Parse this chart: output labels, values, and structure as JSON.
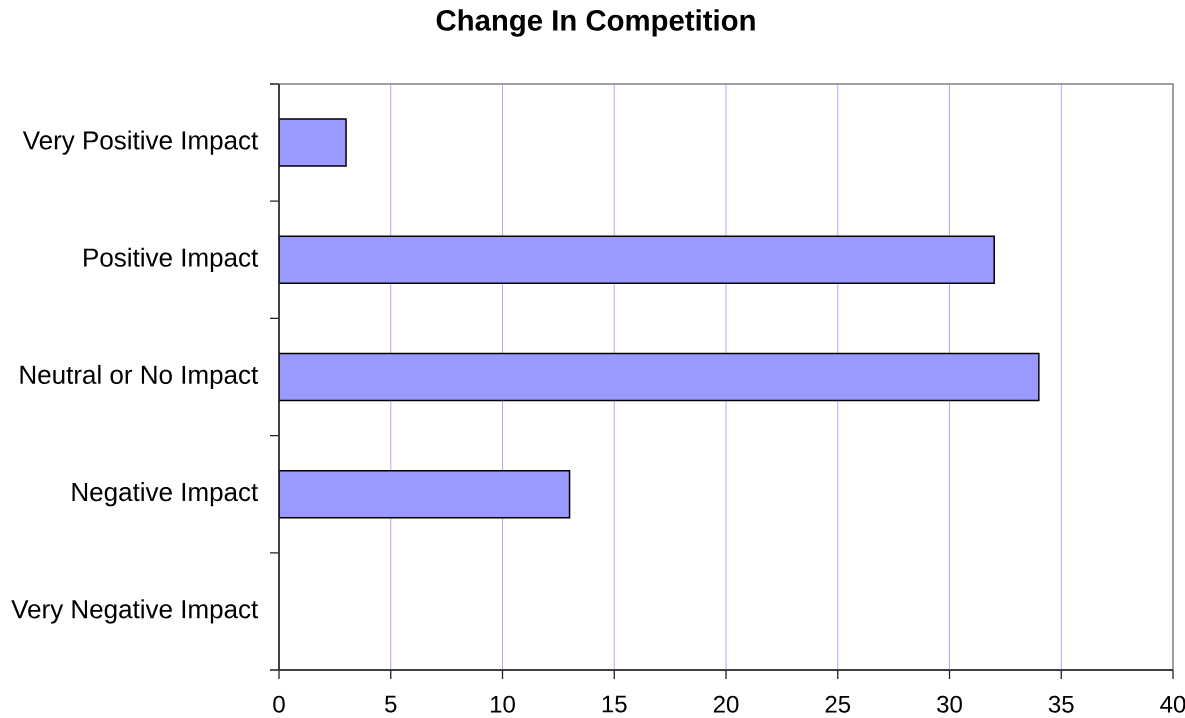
{
  "chart_data": {
    "type": "bar",
    "orientation": "horizontal",
    "title": "Change In Competition",
    "categories": [
      "Very Positive Impact",
      "Positive Impact",
      "Neutral or No Impact",
      "Negative Impact",
      "Very Negative Impact"
    ],
    "values": [
      3,
      32,
      34,
      13,
      0
    ],
    "color": "#9999ff",
    "xlim": [
      0,
      40
    ],
    "xticks": [
      0,
      5,
      10,
      15,
      20,
      25,
      30,
      35,
      40
    ],
    "grid": "x"
  }
}
